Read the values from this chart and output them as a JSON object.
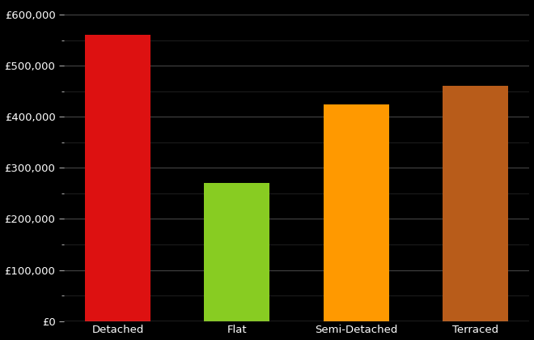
{
  "categories": [
    "Detached",
    "Flat",
    "Semi-Detached",
    "Terraced"
  ],
  "values": [
    560000,
    270000,
    425000,
    460000
  ],
  "bar_colors": [
    "#dd1111",
    "#88cc22",
    "#ff9900",
    "#b85c1a"
  ],
  "background_color": "#000000",
  "text_color": "#ffffff",
  "grid_color": "#444444",
  "baseline_color": "#888888",
  "ylim": [
    0,
    620000
  ],
  "major_yticks": [
    0,
    100000,
    200000,
    300000,
    400000,
    500000,
    600000
  ],
  "minor_ytick_step": 50000,
  "bar_width": 0.55,
  "tick_fontsize": 9.5
}
